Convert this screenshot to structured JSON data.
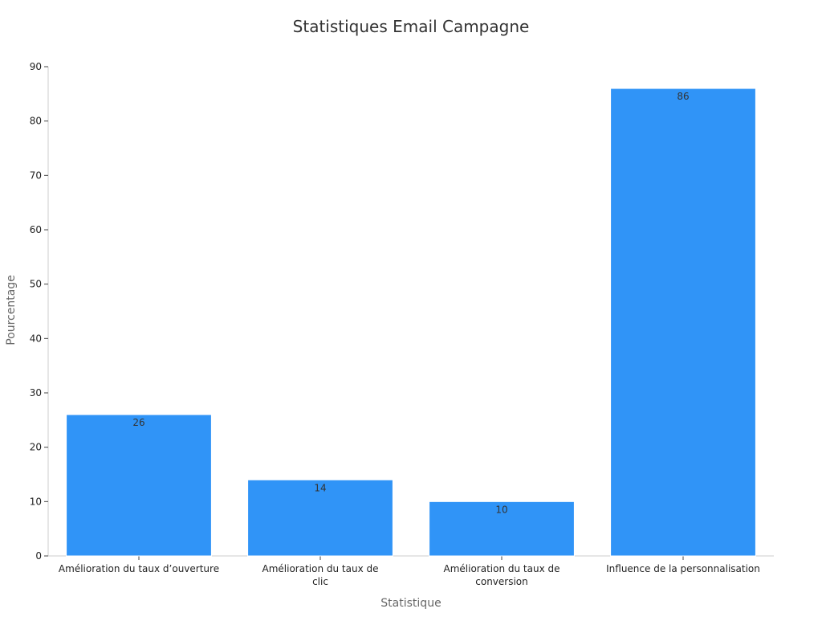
{
  "chart_data": {
    "type": "bar",
    "title": "Statistiques Email Campagne",
    "xlabel": "Statistique",
    "ylabel": "Pourcentage",
    "categories": [
      "Amélioration du taux d’ouverture",
      "Amélioration du taux de clic",
      "Amélioration du taux de conversion",
      "Influence de la personnalisation"
    ],
    "category_lines": [
      [
        "Amélioration du taux d’ouverture"
      ],
      [
        "Amélioration du taux de",
        "clic"
      ],
      [
        "Amélioration du taux de",
        "conversion"
      ],
      [
        "Influence de la personnalisation"
      ]
    ],
    "values": [
      26,
      14,
      10,
      86
    ],
    "ylim": [
      0,
      90
    ],
    "yticks": [
      0,
      10,
      20,
      30,
      40,
      50,
      60,
      70,
      80,
      90
    ],
    "grid": false,
    "legend": "none",
    "bar_color": "#3094f7",
    "show_data_labels": true
  }
}
